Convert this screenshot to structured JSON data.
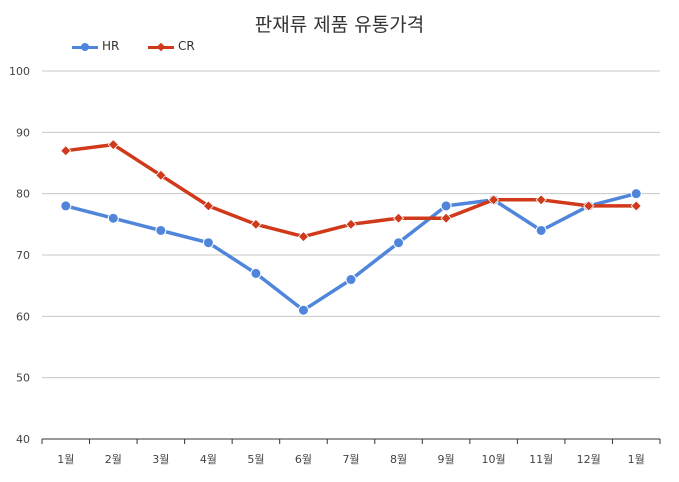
{
  "chart_data": {
    "type": "line",
    "title": "판재류 제품 유통가격",
    "categories": [
      "1월",
      "2월",
      "3월",
      "4월",
      "5월",
      "6월",
      "7월",
      "8월",
      "9월",
      "10월",
      "11월",
      "12월",
      "1월"
    ],
    "series": [
      {
        "name": "HR",
        "color": "#4f86dc",
        "marker": "circle",
        "values": [
          78,
          76,
          74,
          72,
          67,
          61,
          66,
          72,
          78,
          79,
          74,
          78,
          80
        ]
      },
      {
        "name": "CR",
        "color": "#d0391a",
        "marker": "diamond",
        "values": [
          87,
          88,
          83,
          78,
          75,
          73,
          75,
          76,
          76,
          79,
          79,
          78,
          78
        ]
      }
    ],
    "ylim": [
      40,
      100
    ],
    "yticks": [
      40,
      50,
      60,
      70,
      80,
      90,
      100
    ],
    "grid": true,
    "legend": "top-left"
  }
}
